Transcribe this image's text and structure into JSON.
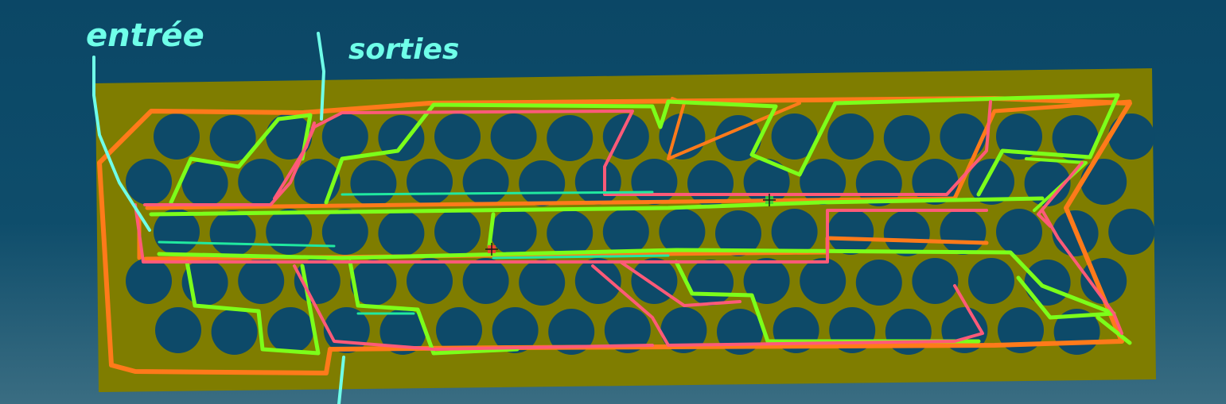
{
  "colors": {
    "background_top": "#0b4766",
    "background_bottom": "#3a6d82",
    "board": "#7f7d00",
    "hole": "#0d4a69",
    "outline_orange": "#ff7a1a",
    "outline_green": "#7cff1a",
    "outline_pink": "#ff5a78",
    "outline_mint": "#20e8a0",
    "annotation": "#6fffe9"
  },
  "annotations": {
    "left_label": "entrée",
    "right_label": "sorties"
  },
  "board": {
    "rows": 5,
    "holes_per_row": [
      18,
      18,
      18,
      18,
      17
    ]
  },
  "markers": [
    "anchor-marker-left",
    "anchor-marker-right"
  ]
}
